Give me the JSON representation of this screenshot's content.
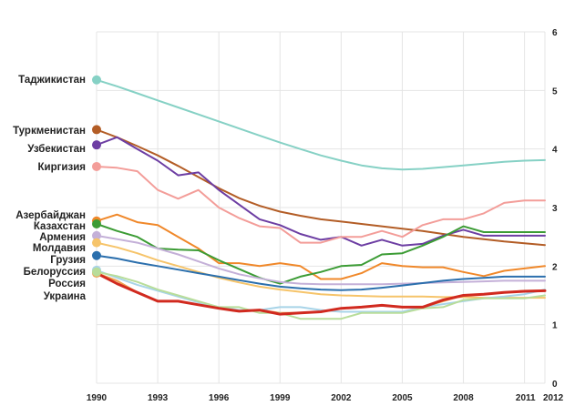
{
  "chart_data": {
    "type": "line",
    "title": "",
    "xlabel": "",
    "ylabel": "",
    "x": [
      1990,
      1991,
      1992,
      1993,
      1994,
      1995,
      1996,
      1997,
      1998,
      1999,
      2000,
      2001,
      2002,
      2003,
      2004,
      2005,
      2006,
      2007,
      2008,
      2009,
      2010,
      2011,
      2012
    ],
    "x_ticks": [
      1990,
      1993,
      1996,
      1999,
      2002,
      2005,
      2008,
      2011,
      2012
    ],
    "y_ticks": [
      0,
      1,
      2,
      3,
      4,
      5,
      6
    ],
    "ylim": [
      0,
      6
    ],
    "grid": true,
    "y_axis_side": "right",
    "series": [
      {
        "name": "Таджикистан",
        "color": "#86d1c5",
        "label_y": 5.18,
        "values": [
          5.18,
          5.07,
          4.95,
          4.83,
          4.71,
          4.59,
          4.47,
          4.35,
          4.23,
          4.11,
          4.0,
          3.89,
          3.8,
          3.72,
          3.67,
          3.65,
          3.66,
          3.69,
          3.72,
          3.75,
          3.78,
          3.8,
          3.81
        ]
      },
      {
        "name": "Туркменистан",
        "color": "#b35d26",
        "label_y": 4.33,
        "values": [
          4.33,
          4.2,
          4.05,
          3.89,
          3.71,
          3.52,
          3.33,
          3.16,
          3.03,
          2.93,
          2.86,
          2.8,
          2.76,
          2.72,
          2.68,
          2.64,
          2.6,
          2.55,
          2.5,
          2.46,
          2.42,
          2.39,
          2.36
        ]
      },
      {
        "name": "Узбекистан",
        "color": "#6d3ea3",
        "label_y": 4.07,
        "values": [
          4.07,
          4.2,
          4.0,
          3.8,
          3.55,
          3.6,
          3.3,
          3.05,
          2.8,
          2.7,
          2.55,
          2.45,
          2.5,
          2.35,
          2.45,
          2.35,
          2.38,
          2.52,
          2.62,
          2.52,
          2.52,
          2.52,
          2.52
        ]
      },
      {
        "name": "Киргизия",
        "color": "#f39d99",
        "label_y": 3.7,
        "values": [
          3.7,
          3.68,
          3.62,
          3.3,
          3.15,
          3.3,
          3.0,
          2.82,
          2.68,
          2.65,
          2.4,
          2.4,
          2.5,
          2.5,
          2.6,
          2.5,
          2.7,
          2.8,
          2.8,
          2.9,
          3.08,
          3.12,
          3.12
        ]
      },
      {
        "name": "Азербайджан",
        "color": "#f0882a",
        "label_y": 2.77,
        "values": [
          2.77,
          2.88,
          2.75,
          2.7,
          2.5,
          2.3,
          2.05,
          2.05,
          2.0,
          2.05,
          2.0,
          1.78,
          1.78,
          1.88,
          2.05,
          2.0,
          1.98,
          1.98,
          1.9,
          1.83,
          1.92,
          1.96,
          2.0
        ]
      },
      {
        "name": "Казахстан",
        "color": "#3c9c35",
        "label_y": 2.72,
        "values": [
          2.72,
          2.6,
          2.5,
          2.3,
          2.28,
          2.27,
          2.1,
          1.95,
          1.8,
          1.7,
          1.82,
          1.9,
          2.0,
          2.02,
          2.2,
          2.22,
          2.35,
          2.5,
          2.68,
          2.58,
          2.58,
          2.58,
          2.58
        ]
      },
      {
        "name": "Армения",
        "color": "#c4b0d8",
        "label_y": 2.52,
        "values": [
          2.52,
          2.46,
          2.4,
          2.3,
          2.2,
          2.08,
          1.96,
          1.86,
          1.79,
          1.73,
          1.7,
          1.69,
          1.69,
          1.69,
          1.69,
          1.7,
          1.71,
          1.72,
          1.73,
          1.74,
          1.75,
          1.75,
          1.75
        ]
      },
      {
        "name": "Молдавия",
        "color": "#f6c46a",
        "label_y": 2.4,
        "values": [
          2.4,
          2.32,
          2.22,
          2.1,
          2.0,
          1.9,
          1.8,
          1.72,
          1.65,
          1.6,
          1.56,
          1.52,
          1.5,
          1.49,
          1.48,
          1.48,
          1.48,
          1.47,
          1.47,
          1.46,
          1.46,
          1.46,
          1.46
        ]
      },
      {
        "name": "Грузия",
        "color": "#2b6fad",
        "label_y": 2.18,
        "values": [
          2.18,
          2.13,
          2.06,
          2.0,
          1.94,
          1.88,
          1.82,
          1.76,
          1.7,
          1.65,
          1.62,
          1.6,
          1.59,
          1.6,
          1.63,
          1.67,
          1.71,
          1.75,
          1.78,
          1.8,
          1.82,
          1.82,
          1.82
        ]
      },
      {
        "name": "Белоруссия",
        "color": "#a8d4e8",
        "label_y": 1.93,
        "values": [
          1.93,
          1.8,
          1.68,
          1.58,
          1.48,
          1.38,
          1.3,
          1.25,
          1.25,
          1.3,
          1.3,
          1.25,
          1.22,
          1.22,
          1.22,
          1.22,
          1.3,
          1.35,
          1.4,
          1.45,
          1.48,
          1.52,
          1.6
        ]
      },
      {
        "name": "Россия",
        "color": "#f0a050",
        "label_y": 1.88,
        "values": [
          1.88,
          1.75,
          1.55,
          1.4,
          1.4,
          1.34,
          1.28,
          1.23,
          1.25,
          1.2,
          1.2,
          1.22,
          1.28,
          1.3,
          1.33,
          1.3,
          1.3,
          1.4,
          1.5,
          1.52,
          1.55,
          1.58,
          1.58
        ]
      },
      {
        "name": "Украина",
        "color": "#b8dd9a",
        "label_y": 1.9,
        "values": [
          1.9,
          1.83,
          1.73,
          1.6,
          1.5,
          1.4,
          1.3,
          1.3,
          1.2,
          1.2,
          1.1,
          1.1,
          1.1,
          1.2,
          1.2,
          1.2,
          1.28,
          1.3,
          1.42,
          1.45,
          1.45,
          1.45,
          1.5
        ]
      },
      {
        "name": "",
        "color": "#d12a1f",
        "values": [
          1.88,
          1.7,
          1.55,
          1.4,
          1.4,
          1.34,
          1.28,
          1.23,
          1.25,
          1.18,
          1.2,
          1.22,
          1.28,
          1.3,
          1.33,
          1.3,
          1.3,
          1.42,
          1.5,
          1.52,
          1.55,
          1.57,
          1.58
        ]
      }
    ]
  }
}
